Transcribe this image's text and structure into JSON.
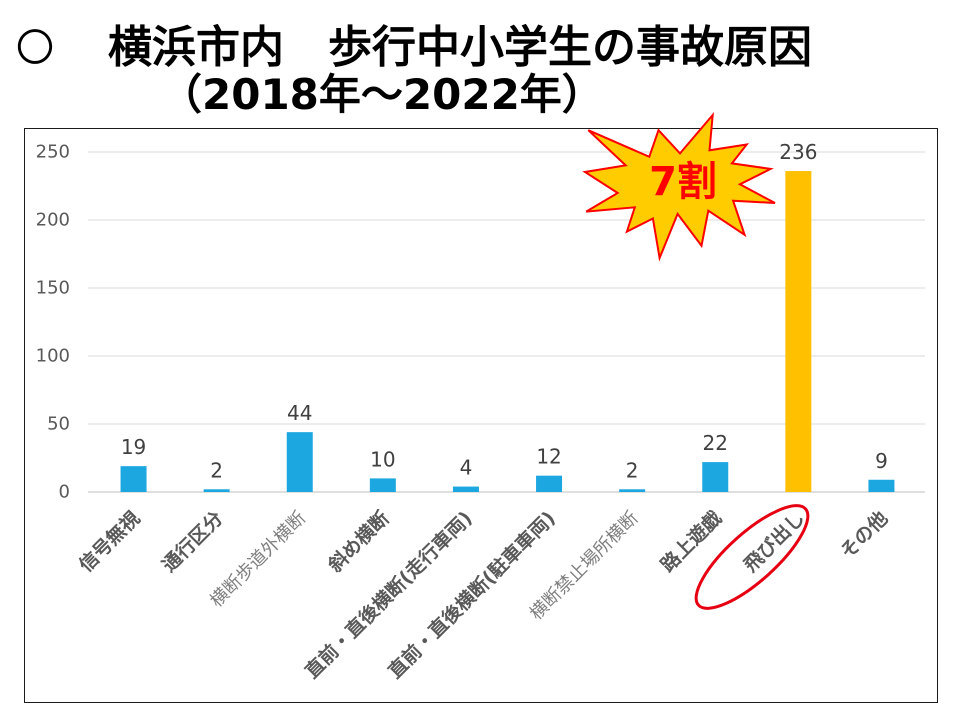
{
  "title": {
    "bullet": "〇",
    "line1": "横浜市内　歩行中小学生の事故原因",
    "line2": "（2018年～2022年）"
  },
  "callout": {
    "text": "7割",
    "shape": "starburst",
    "fill": "#FFCC00",
    "stroke": "#FF0000",
    "text_color": "#FF0000"
  },
  "highlight_ellipse": {
    "color": "#E60012"
  },
  "chart_data": {
    "type": "bar",
    "categories": [
      "信号無視",
      "通行区分",
      "横断歩道外横断",
      "斜め横断",
      "直前・直後横断(走行車両)",
      "直前・直後横断(駐車車両)",
      "横断禁止場所横断",
      "路上遊戯",
      "飛び出し",
      "その他"
    ],
    "values": [
      19,
      2,
      44,
      10,
      4,
      12,
      2,
      22,
      236,
      9
    ],
    "bar_colors": [
      "#1DA7E0",
      "#1DA7E0",
      "#1DA7E0",
      "#1DA7E0",
      "#1DA7E0",
      "#1DA7E0",
      "#1DA7E0",
      "#1DA7E0",
      "#FFC000",
      "#1DA7E0"
    ],
    "ylim": [
      0,
      250
    ],
    "yticks": [
      0,
      50,
      100,
      150,
      200,
      250
    ],
    "grid": true,
    "data_labels": true
  }
}
